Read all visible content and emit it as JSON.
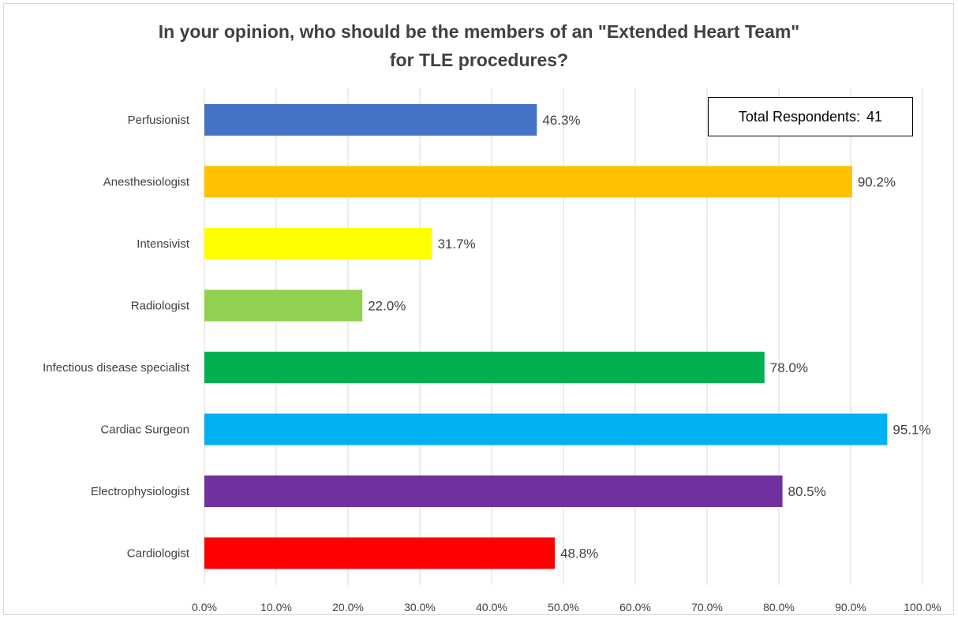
{
  "chart_data": {
    "type": "bar",
    "orientation": "horizontal",
    "title_lines": [
      "In your opinion, who should be the members of an \"Extended Heart Team\"",
      "for TLE procedures?"
    ],
    "annotation": {
      "label": "Total Respondents:",
      "value": "41"
    },
    "categories": [
      "Perfusionist",
      "Anesthesiologist",
      "Intensivist",
      "Radiologist",
      "Infectious disease specialist",
      "Cardiac Surgeon",
      "Electrophysiologist",
      "Cardiologist"
    ],
    "values": [
      46.3,
      90.2,
      31.7,
      22.0,
      78.0,
      95.1,
      80.5,
      48.8
    ],
    "value_labels": [
      "46.3%",
      "90.2%",
      "31.7%",
      "22.0%",
      "78.0%",
      "95.1%",
      "80.5%",
      "48.8%"
    ],
    "colors": [
      "#4472c4",
      "#ffc000",
      "#ffff00",
      "#92d050",
      "#00b050",
      "#00b0f0",
      "#7030a0",
      "#ff0000"
    ],
    "xlim": [
      0,
      100
    ],
    "x_ticks": [
      0,
      10,
      20,
      30,
      40,
      50,
      60,
      70,
      80,
      90,
      100
    ],
    "x_tick_labels": [
      "0.0%",
      "10.0%",
      "20.0%",
      "30.0%",
      "40.0%",
      "50.0%",
      "60.0%",
      "70.0%",
      "80.0%",
      "90.0%",
      "100.0%"
    ],
    "grid": true,
    "legend": "none"
  }
}
